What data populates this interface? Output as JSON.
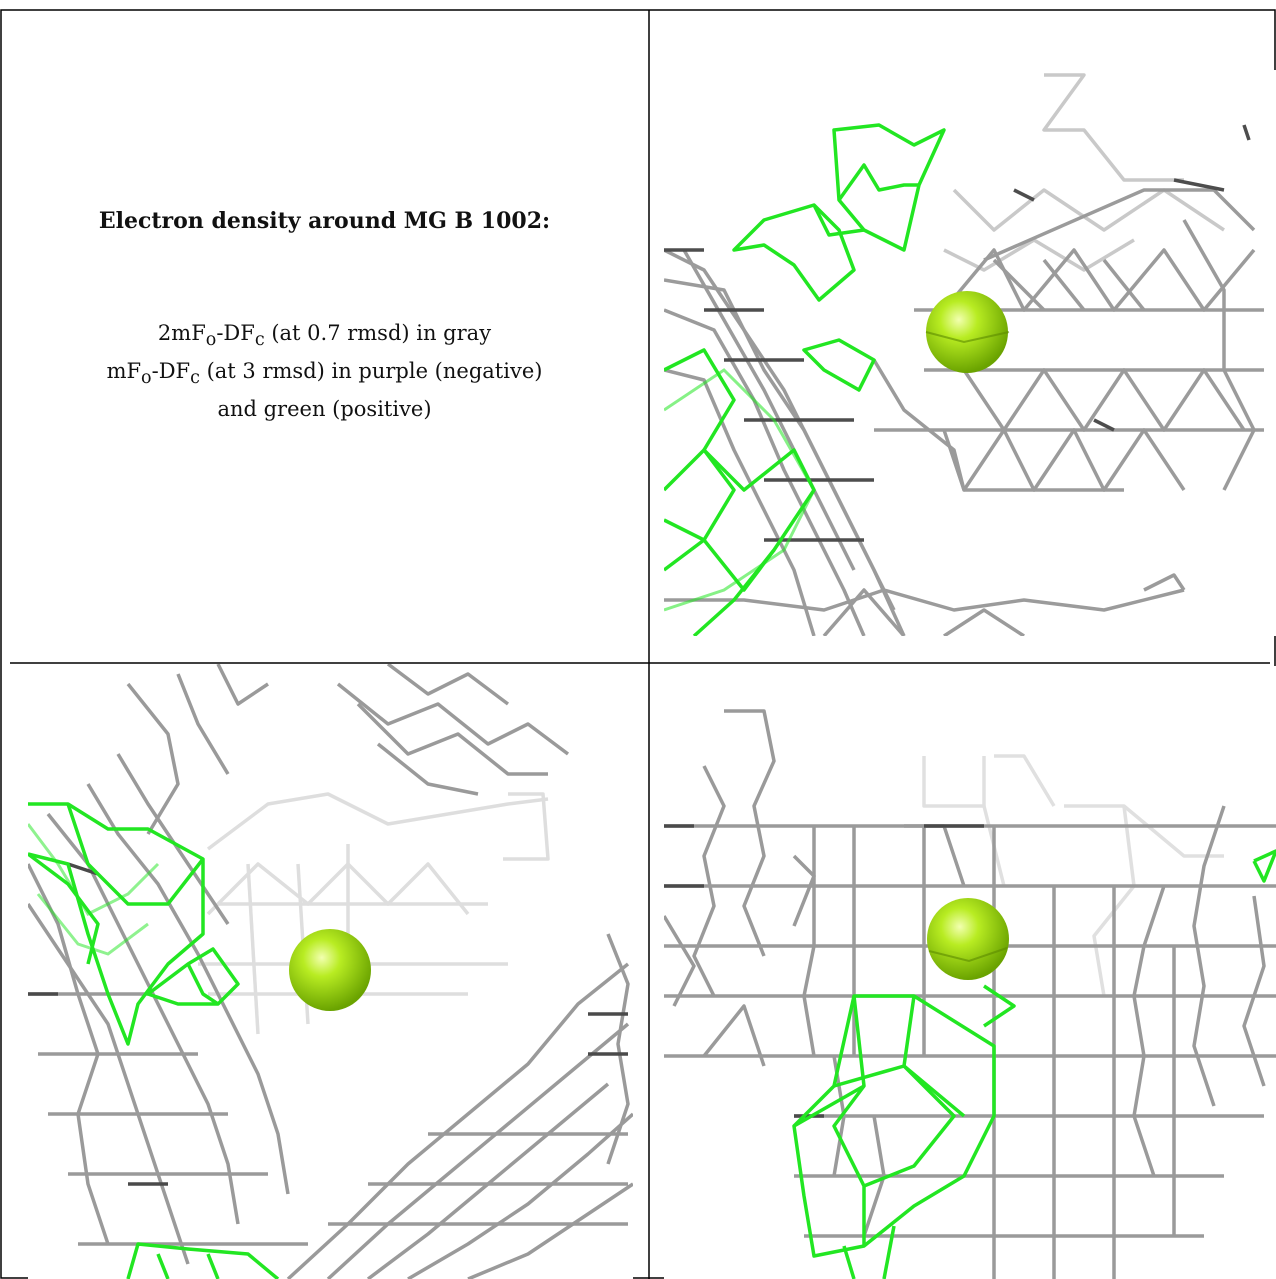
{
  "caption": {
    "title": "Electron density around MG B 1002:",
    "line1_prefix": "2mF",
    "line1_sub1": "o",
    "line1_mid": "-DF",
    "line1_sub2": "c",
    "line1_suffix": " (at 0.7 rmsd) in gray",
    "line2_prefix": "mF",
    "line2_sub1": "o",
    "line2_mid": "-DF",
    "line2_sub2": "c",
    "line2_suffix": " (at 3 rmsd) in purple (negative)",
    "line3": "and green (positive)"
  },
  "colors": {
    "mesh_gray": "#9a9a9a",
    "mesh_dark": "#555555",
    "mesh_light": "#d8d8d8",
    "mesh_green": "#1fe01f",
    "ion": "#a6e01a",
    "border": "#000000"
  },
  "panels": [
    {
      "name": "view-top-right",
      "ion": "Mg"
    },
    {
      "name": "view-bottom-left",
      "ion": "Mg"
    },
    {
      "name": "view-bottom-right",
      "ion": "Mg"
    }
  ]
}
